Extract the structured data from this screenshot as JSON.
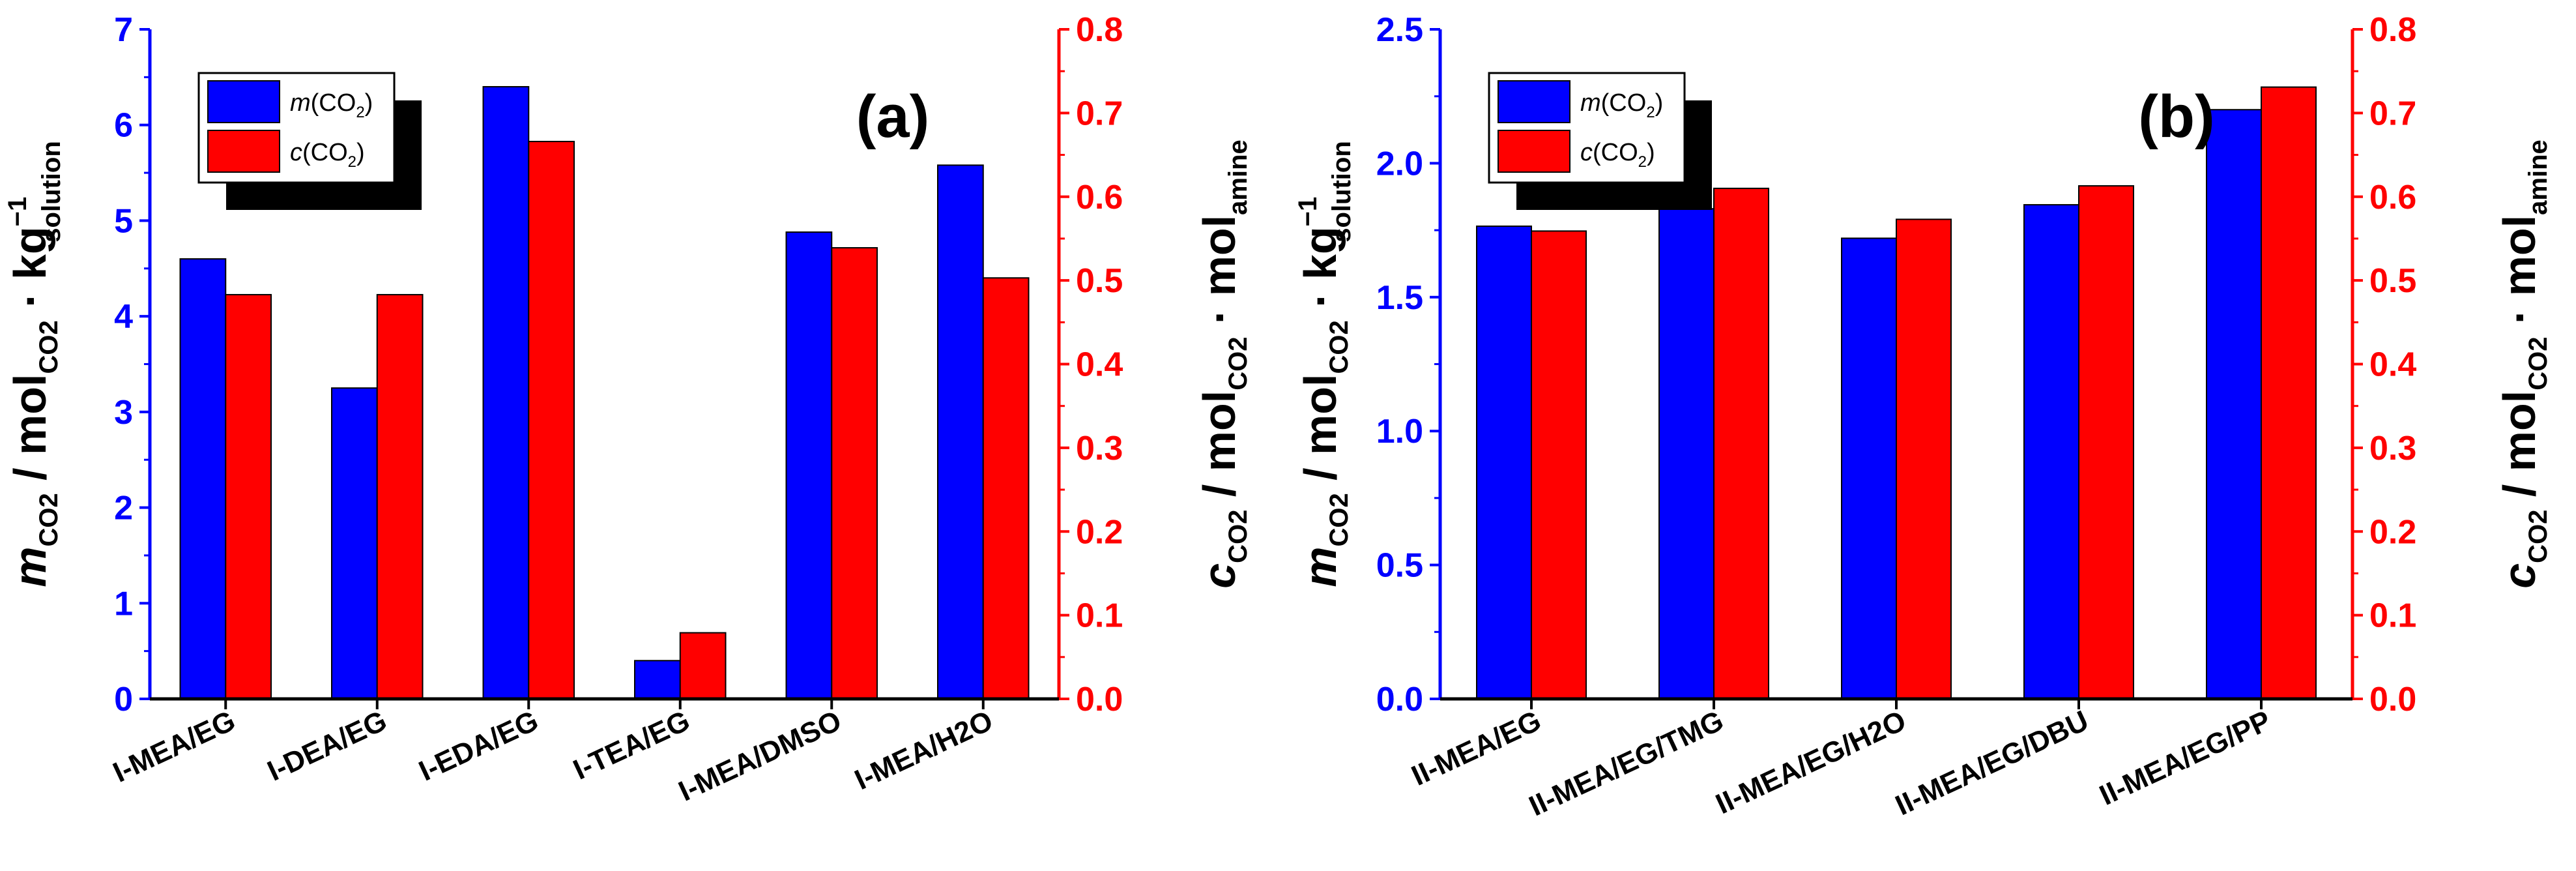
{
  "colors": {
    "m_series": "#0000ff",
    "c_series": "#ff0000",
    "axis": "#000000"
  },
  "chart_data": [
    {
      "panel": "(a)",
      "type": "bar",
      "categories": [
        "I-MEA/EG",
        "I-DEA/EG",
        "I-EDA/EG",
        "I-TEA/EG",
        "I-MEA/DMSO",
        "I-MEA/H2O"
      ],
      "series": [
        {
          "name": "m(CO2)",
          "axis": "left",
          "color": "#0000ff",
          "values": [
            4.6,
            3.25,
            6.4,
            0.4,
            4.88,
            5.58
          ]
        },
        {
          "name": "c(CO2)",
          "axis": "right",
          "color": "#ff0000",
          "values": [
            0.483,
            0.483,
            0.666,
            0.079,
            0.539,
            0.503
          ]
        }
      ],
      "ylim_left": [
        0,
        7
      ],
      "yticks_left": [
        "0",
        "1",
        "2",
        "3",
        "4",
        "5",
        "6",
        "7"
      ],
      "ylim_right": [
        0.0,
        0.8
      ],
      "yticks_right": [
        "0.0",
        "0.1",
        "0.2",
        "0.3",
        "0.4",
        "0.5",
        "0.6",
        "0.7",
        "0.8"
      ],
      "ylabel_left": {
        "main": "m",
        "main_sub": "CO2",
        "rest": " / mol",
        "rest_sub": "CO2",
        "dot": " · kg",
        "kg_sup": "−1",
        "kg_sub": "solution"
      },
      "ylabel_right": {
        "main": "c",
        "main_sub": "CO2",
        "rest": " / mol",
        "rest_sub": "CO2",
        "dot": " · mol",
        "mol_sub": "amine"
      },
      "legend": [
        {
          "symbol": "m",
          "text": "(CO",
          "sub": "2",
          "end": ")"
        },
        {
          "symbol": "c",
          "text": "(CO",
          "sub": "2",
          "end": ")"
        }
      ],
      "legend_position": "top-left"
    },
    {
      "panel": "(b)",
      "type": "bar",
      "categories": [
        "II-MEA/EG",
        "II-MEA/EG/TMG",
        "II-MEA/EG/H2O",
        "II-MEA/EG/DBU",
        "II-MEA/EG/PP"
      ],
      "series": [
        {
          "name": "m(CO2)",
          "axis": "left",
          "color": "#0000ff",
          "values": [
            1.765,
            1.83,
            1.72,
            1.845,
            2.2
          ]
        },
        {
          "name": "c(CO2)",
          "axis": "right",
          "color": "#ff0000",
          "values": [
            0.559,
            0.61,
            0.573,
            0.613,
            0.731
          ]
        }
      ],
      "ylim_left": [
        0,
        2.5
      ],
      "yticks_left": [
        "0.0",
        "0.5",
        "1.0",
        "1.5",
        "2.0",
        "2.5"
      ],
      "ylim_right": [
        0.0,
        0.8
      ],
      "yticks_right": [
        "0.0",
        "0.1",
        "0.2",
        "0.3",
        "0.4",
        "0.5",
        "0.6",
        "0.7",
        "0.8"
      ],
      "ylabel_left": {
        "main": "m",
        "main_sub": "CO2",
        "rest": " / mol",
        "rest_sub": "CO2",
        "dot": " · kg",
        "kg_sup": "−1",
        "kg_sub": "solution"
      },
      "ylabel_right": {
        "main": "c",
        "main_sub": "CO2",
        "rest": " / mol",
        "rest_sub": "CO2",
        "dot": " · mol",
        "mol_sub": "amine"
      },
      "legend": [
        {
          "symbol": "m",
          "text": "(CO",
          "sub": "2",
          "end": ")"
        },
        {
          "symbol": "c",
          "text": "(CO",
          "sub": "2",
          "end": ")"
        }
      ],
      "legend_position": "top-left"
    }
  ]
}
